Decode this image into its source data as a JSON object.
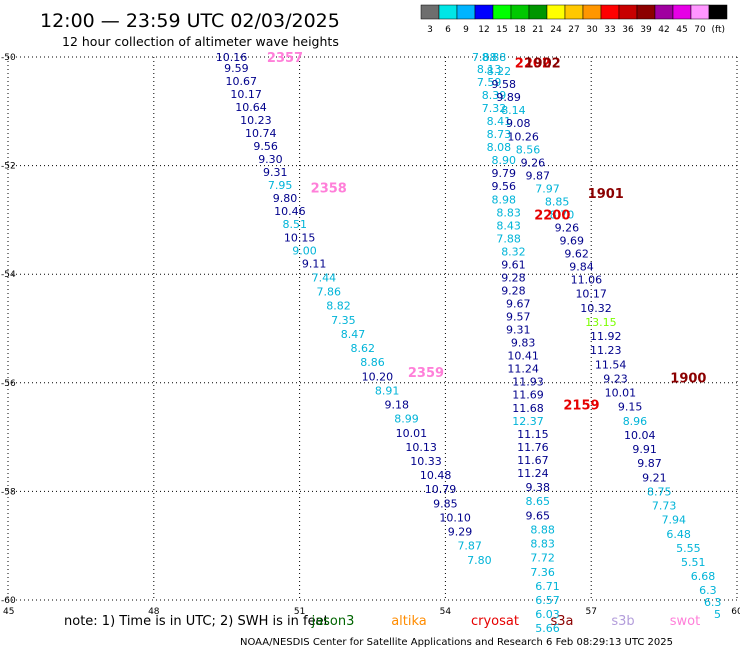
{
  "header": {
    "title": "12:00 — 23:59 UTC 02/03/2025",
    "subtitle": "12 hour collection of altimeter wave heights"
  },
  "colorbar": {
    "unit": "(ft)",
    "bins": [
      {
        "label": "3",
        "color": "#6e6e6e"
      },
      {
        "label": "6",
        "color": "#00e6e6"
      },
      {
        "label": "9",
        "color": "#00b4ff"
      },
      {
        "label": "12",
        "color": "#0000ff"
      },
      {
        "label": "15",
        "color": "#00ff00"
      },
      {
        "label": "18",
        "color": "#00c800"
      },
      {
        "label": "21",
        "color": "#009600"
      },
      {
        "label": "24",
        "color": "#ffff00"
      },
      {
        "label": "27",
        "color": "#ffc800"
      },
      {
        "label": "30",
        "color": "#ff9600"
      },
      {
        "label": "33",
        "color": "#ff0000"
      },
      {
        "label": "36",
        "color": "#c80000"
      },
      {
        "label": "39",
        "color": "#8c0000"
      },
      {
        "label": "42",
        "color": "#a000a0"
      },
      {
        "label": "45",
        "color": "#e600e6"
      },
      {
        "label": "70",
        "color": "#ff96ff"
      },
      {
        "label": "",
        "color": "#000000"
      }
    ]
  },
  "colors": {
    "navy": "#00008b",
    "lightblue": "#00b4d8",
    "pink": "#ff7fd9",
    "darkred": "#8b0000",
    "red": "#e60000",
    "lightgreen": "#7cff00",
    "grid": "#000000"
  },
  "footer": {
    "note": "note:  1) Time is in UTC;  2) SWH is in feet",
    "credit": "NOAA/NESDIS Center for Satellite Applications and Research     6 Feb 08:29:13 UTC 2025",
    "missions": [
      {
        "label": "jason3",
        "color": "#006400"
      },
      {
        "label": "altika",
        "color": "#ff8c00"
      },
      {
        "label": "cryosat",
        "color": "#e60000"
      },
      {
        "label": "s3a",
        "color": "#8b0000"
      },
      {
        "label": "s3b",
        "color": "#b39ddb"
      },
      {
        "label": "swot",
        "color": "#ff7fd9"
      }
    ]
  },
  "chart_data": {
    "type": "scatter",
    "xlim": [
      45,
      60
    ],
    "ylim": [
      -60,
      -50
    ],
    "xticks": [
      45,
      48,
      51,
      54,
      57,
      60
    ],
    "xtick_labels": [
      "45",
      "48",
      "51",
      "54",
      "57",
      "60"
    ],
    "yticks": [
      -50,
      -52,
      -54,
      -56,
      -58,
      -60
    ],
    "ytick_labels": [
      "-50",
      "-52",
      "-54",
      "-56",
      "-58",
      "-60"
    ],
    "grid": true,
    "time_labels": [
      {
        "text": "2357",
        "lon": 50.7,
        "lat": -50.0,
        "color": "pink"
      },
      {
        "text": "2358",
        "lon": 51.6,
        "lat": -52.4,
        "color": "pink"
      },
      {
        "text": "2359",
        "lon": 53.6,
        "lat": -55.8,
        "color": "pink"
      },
      {
        "text": "2202",
        "lon": 55.8,
        "lat": -50.1,
        "color": "red"
      },
      {
        "text": "1902",
        "lon": 56.0,
        "lat": -50.1,
        "color": "darkred"
      },
      {
        "text": "2200",
        "lon": 56.2,
        "lat": -52.9,
        "color": "red"
      },
      {
        "text": "1901",
        "lon": 57.3,
        "lat": -52.5,
        "color": "darkred"
      },
      {
        "text": "2159",
        "lon": 56.8,
        "lat": -56.4,
        "color": "red"
      },
      {
        "text": "1900",
        "lon": 59.0,
        "lat": -55.9,
        "color": "darkred"
      }
    ],
    "series": [
      {
        "points": [
          {
            "lon": 49.6,
            "lat": -50.0,
            "v": "10.16",
            "c": "navy"
          },
          {
            "lon": 49.7,
            "lat": -50.2,
            "v": "9.59",
            "c": "navy"
          },
          {
            "lon": 49.8,
            "lat": -50.44,
            "v": "10.67",
            "c": "navy"
          },
          {
            "lon": 49.9,
            "lat": -50.68,
            "v": "10.17",
            "c": "navy"
          },
          {
            "lon": 50.0,
            "lat": -50.92,
            "v": "10.64",
            "c": "navy"
          },
          {
            "lon": 50.1,
            "lat": -51.16,
            "v": "10.23",
            "c": "navy"
          },
          {
            "lon": 50.2,
            "lat": -51.4,
            "v": "10.74",
            "c": "navy"
          },
          {
            "lon": 50.3,
            "lat": -51.64,
            "v": "9.56",
            "c": "navy"
          },
          {
            "lon": 50.4,
            "lat": -51.88,
            "v": "9.30",
            "c": "navy"
          },
          {
            "lon": 50.5,
            "lat": -52.12,
            "v": "9.31",
            "c": "navy"
          },
          {
            "lon": 50.6,
            "lat": -52.36,
            "v": "7.95",
            "c": "lightblue"
          },
          {
            "lon": 50.7,
            "lat": -52.6,
            "v": "9.80",
            "c": "navy"
          },
          {
            "lon": 50.8,
            "lat": -52.84,
            "v": "10.46",
            "c": "navy"
          },
          {
            "lon": 50.9,
            "lat": -53.08,
            "v": "8.51",
            "c": "lightblue"
          },
          {
            "lon": 51.0,
            "lat": -53.32,
            "v": "10.15",
            "c": "navy"
          },
          {
            "lon": 51.1,
            "lat": -53.56,
            "v": "9.00",
            "c": "lightblue"
          },
          {
            "lon": 51.3,
            "lat": -53.8,
            "v": "9.11",
            "c": "navy"
          },
          {
            "lon": 51.5,
            "lat": -54.06,
            "v": "7.44",
            "c": "lightblue"
          },
          {
            "lon": 51.6,
            "lat": -54.32,
            "v": "7.86",
            "c": "lightblue"
          },
          {
            "lon": 51.8,
            "lat": -54.58,
            "v": "8.82",
            "c": "lightblue"
          },
          {
            "lon": 51.9,
            "lat": -54.84,
            "v": "7.35",
            "c": "lightblue"
          },
          {
            "lon": 52.1,
            "lat": -55.1,
            "v": "8.47",
            "c": "lightblue"
          },
          {
            "lon": 52.3,
            "lat": -55.36,
            "v": "8.62",
            "c": "lightblue"
          },
          {
            "lon": 52.5,
            "lat": -55.62,
            "v": "8.86",
            "c": "lightblue"
          },
          {
            "lon": 52.6,
            "lat": -55.88,
            "v": "10.20",
            "c": "navy"
          },
          {
            "lon": 52.8,
            "lat": -56.14,
            "v": "8.91",
            "c": "lightblue"
          },
          {
            "lon": 53.0,
            "lat": -56.4,
            "v": "9.18",
            "c": "navy"
          },
          {
            "lon": 53.2,
            "lat": -56.66,
            "v": "8.99",
            "c": "lightblue"
          },
          {
            "lon": 53.3,
            "lat": -56.92,
            "v": "10.01",
            "c": "navy"
          },
          {
            "lon": 53.5,
            "lat": -57.18,
            "v": "10.13",
            "c": "navy"
          },
          {
            "lon": 53.6,
            "lat": -57.44,
            "v": "10.33",
            "c": "navy"
          },
          {
            "lon": 53.8,
            "lat": -57.7,
            "v": "10.48",
            "c": "navy"
          },
          {
            "lon": 53.9,
            "lat": -57.96,
            "v": "10.79",
            "c": "navy"
          },
          {
            "lon": 54.0,
            "lat": -58.22,
            "v": "9.85",
            "c": "navy"
          },
          {
            "lon": 54.2,
            "lat": -58.48,
            "v": "10.10",
            "c": "navy"
          },
          {
            "lon": 54.3,
            "lat": -58.74,
            "v": "9.29",
            "c": "navy"
          },
          {
            "lon": 54.5,
            "lat": -59.0,
            "v": "7.87",
            "c": "lightblue"
          },
          {
            "lon": 54.7,
            "lat": -59.26,
            "v": "7.80",
            "c": "lightblue"
          }
        ]
      },
      {
        "points": [
          {
            "lon": 54.8,
            "lat": -50.0,
            "v": "7.88",
            "c": "lightblue"
          },
          {
            "lon": 54.9,
            "lat": -50.22,
            "v": "8.13",
            "c": "lightblue"
          },
          {
            "lon": 54.9,
            "lat": -50.46,
            "v": "7.59",
            "c": "lightblue"
          },
          {
            "lon": 55.0,
            "lat": -50.7,
            "v": "8.39",
            "c": "lightblue"
          },
          {
            "lon": 55.0,
            "lat": -50.94,
            "v": "7.32",
            "c": "lightblue"
          },
          {
            "lon": 55.1,
            "lat": -51.18,
            "v": "8.41",
            "c": "lightblue"
          },
          {
            "lon": 55.1,
            "lat": -51.42,
            "v": "8.73",
            "c": "lightblue"
          },
          {
            "lon": 55.1,
            "lat": -51.66,
            "v": "8.08",
            "c": "lightblue"
          },
          {
            "lon": 55.2,
            "lat": -51.9,
            "v": "8.90",
            "c": "lightblue"
          },
          {
            "lon": 55.2,
            "lat": -52.14,
            "v": "9.79",
            "c": "navy"
          },
          {
            "lon": 55.2,
            "lat": -52.38,
            "v": "9.56",
            "c": "navy"
          },
          {
            "lon": 55.2,
            "lat": -52.62,
            "v": "8.98",
            "c": "lightblue"
          },
          {
            "lon": 55.3,
            "lat": -52.86,
            "v": "8.83",
            "c": "lightblue"
          },
          {
            "lon": 55.3,
            "lat": -53.1,
            "v": "8.43",
            "c": "lightblue"
          },
          {
            "lon": 55.3,
            "lat": -53.34,
            "v": "7.88",
            "c": "lightblue"
          },
          {
            "lon": 55.4,
            "lat": -53.58,
            "v": "8.32",
            "c": "lightblue"
          },
          {
            "lon": 55.4,
            "lat": -53.82,
            "v": "9.61",
            "c": "navy"
          },
          {
            "lon": 55.4,
            "lat": -54.06,
            "v": "9.28",
            "c": "navy"
          },
          {
            "lon": 55.4,
            "lat": -54.3,
            "v": "9.28",
            "c": "navy"
          },
          {
            "lon": 55.5,
            "lat": -54.54,
            "v": "9.67",
            "c": "navy"
          },
          {
            "lon": 55.5,
            "lat": -54.78,
            "v": "9.57",
            "c": "navy"
          },
          {
            "lon": 55.5,
            "lat": -55.02,
            "v": "9.31",
            "c": "navy"
          },
          {
            "lon": 55.6,
            "lat": -55.26,
            "v": "9.83",
            "c": "navy"
          },
          {
            "lon": 55.6,
            "lat": -55.5,
            "v": "10.41",
            "c": "navy"
          },
          {
            "lon": 55.6,
            "lat": -55.74,
            "v": "11.24",
            "c": "navy"
          },
          {
            "lon": 55.7,
            "lat": -55.98,
            "v": "11.93",
            "c": "navy"
          },
          {
            "lon": 55.7,
            "lat": -56.22,
            "v": "11.69",
            "c": "navy"
          },
          {
            "lon": 55.7,
            "lat": -56.46,
            "v": "11.68",
            "c": "navy"
          },
          {
            "lon": 55.7,
            "lat": -56.7,
            "v": "12.37",
            "c": "lightblue"
          },
          {
            "lon": 55.8,
            "lat": -56.94,
            "v": "11.15",
            "c": "navy"
          },
          {
            "lon": 55.8,
            "lat": -57.18,
            "v": "11.76",
            "c": "navy"
          },
          {
            "lon": 55.8,
            "lat": -57.42,
            "v": "11.67",
            "c": "navy"
          },
          {
            "lon": 55.8,
            "lat": -57.66,
            "v": "11.24",
            "c": "navy"
          },
          {
            "lon": 55.9,
            "lat": -57.92,
            "v": "9.38",
            "c": "navy"
          },
          {
            "lon": 55.9,
            "lat": -58.18,
            "v": "8.65",
            "c": "lightblue"
          },
          {
            "lon": 55.9,
            "lat": -58.44,
            "v": "9.65",
            "c": "navy"
          },
          {
            "lon": 56.0,
            "lat": -58.7,
            "v": "8.88",
            "c": "lightblue"
          },
          {
            "lon": 56.0,
            "lat": -58.96,
            "v": "8.83",
            "c": "lightblue"
          },
          {
            "lon": 56.0,
            "lat": -59.22,
            "v": "7.72",
            "c": "lightblue"
          },
          {
            "lon": 56.0,
            "lat": -59.48,
            "v": "7.36",
            "c": "lightblue"
          },
          {
            "lon": 56.1,
            "lat": -59.74,
            "v": "6.71",
            "c": "lightblue"
          },
          {
            "lon": 56.1,
            "lat": -60.0,
            "v": "6.57",
            "c": "lightblue"
          },
          {
            "lon": 56.1,
            "lat": -60.26,
            "v": "6.03",
            "c": "lightblue"
          },
          {
            "lon": 56.1,
            "lat": -60.52,
            "v": "5.66",
            "c": "lightblue"
          }
        ]
      },
      {
        "points": [
          {
            "lon": 55.0,
            "lat": -50.0,
            "v": "8.88",
            "c": "lightblue"
          },
          {
            "lon": 55.1,
            "lat": -50.26,
            "v": "8.22",
            "c": "lightblue"
          },
          {
            "lon": 55.2,
            "lat": -50.5,
            "v": "9.58",
            "c": "navy"
          },
          {
            "lon": 55.3,
            "lat": -50.74,
            "v": "9.89",
            "c": "navy"
          },
          {
            "lon": 55.4,
            "lat": -50.98,
            "v": "8.14",
            "c": "lightblue"
          },
          {
            "lon": 55.5,
            "lat": -51.22,
            "v": "9.08",
            "c": "navy"
          },
          {
            "lon": 55.6,
            "lat": -51.46,
            "v": "10.26",
            "c": "navy"
          },
          {
            "lon": 55.7,
            "lat": -51.7,
            "v": "8.56",
            "c": "lightblue"
          },
          {
            "lon": 55.8,
            "lat": -51.94,
            "v": "9.26",
            "c": "navy"
          },
          {
            "lon": 55.9,
            "lat": -52.18,
            "v": "9.87",
            "c": "navy"
          },
          {
            "lon": 56.1,
            "lat": -52.42,
            "v": "7.97",
            "c": "lightblue"
          },
          {
            "lon": 56.3,
            "lat": -52.66,
            "v": "8.85",
            "c": "lightblue"
          },
          {
            "lon": 56.4,
            "lat": -52.9,
            "v": "8.70",
            "c": "lightblue"
          },
          {
            "lon": 56.5,
            "lat": -53.14,
            "v": "9.26",
            "c": "navy"
          },
          {
            "lon": 56.6,
            "lat": -53.38,
            "v": "9.69",
            "c": "navy"
          },
          {
            "lon": 56.7,
            "lat": -53.62,
            "v": "9.62",
            "c": "navy"
          },
          {
            "lon": 56.8,
            "lat": -53.86,
            "v": "9.84",
            "c": "navy"
          },
          {
            "lon": 56.9,
            "lat": -54.1,
            "v": "11.06",
            "c": "navy"
          },
          {
            "lon": 57.0,
            "lat": -54.36,
            "v": "10.17",
            "c": "navy"
          },
          {
            "lon": 57.1,
            "lat": -54.62,
            "v": "10.32",
            "c": "navy"
          },
          {
            "lon": 57.2,
            "lat": -54.88,
            "v": "13.15",
            "c": "lightgreen"
          },
          {
            "lon": 57.3,
            "lat": -55.14,
            "v": "11.92",
            "c": "navy"
          },
          {
            "lon": 57.3,
            "lat": -55.4,
            "v": "11.23",
            "c": "navy"
          },
          {
            "lon": 57.4,
            "lat": -55.66,
            "v": "11.54",
            "c": "navy"
          },
          {
            "lon": 57.5,
            "lat": -55.92,
            "v": "9.23",
            "c": "navy"
          },
          {
            "lon": 57.6,
            "lat": -56.18,
            "v": "10.01",
            "c": "navy"
          },
          {
            "lon": 57.8,
            "lat": -56.44,
            "v": "9.15",
            "c": "navy"
          },
          {
            "lon": 57.9,
            "lat": -56.7,
            "v": "8.96",
            "c": "lightblue"
          },
          {
            "lon": 58.0,
            "lat": -56.96,
            "v": "10.04",
            "c": "navy"
          },
          {
            "lon": 58.1,
            "lat": -57.22,
            "v": "9.91",
            "c": "navy"
          },
          {
            "lon": 58.2,
            "lat": -57.48,
            "v": "9.87",
            "c": "navy"
          },
          {
            "lon": 58.3,
            "lat": -57.74,
            "v": "9.21",
            "c": "navy"
          },
          {
            "lon": 58.4,
            "lat": -58.0,
            "v": "8.75",
            "c": "lightblue"
          },
          {
            "lon": 58.5,
            "lat": -58.26,
            "v": "7.73",
            "c": "lightblue"
          },
          {
            "lon": 58.7,
            "lat": -58.52,
            "v": "7.94",
            "c": "lightblue"
          },
          {
            "lon": 58.8,
            "lat": -58.78,
            "v": "6.48",
            "c": "lightblue"
          },
          {
            "lon": 59.0,
            "lat": -59.04,
            "v": "5.55",
            "c": "lightblue"
          },
          {
            "lon": 59.1,
            "lat": -59.3,
            "v": "5.51",
            "c": "lightblue"
          },
          {
            "lon": 59.3,
            "lat": -59.56,
            "v": "6.68",
            "c": "lightblue"
          },
          {
            "lon": 59.4,
            "lat": -59.82,
            "v": "6.3",
            "c": "lightblue"
          },
          {
            "lon": 59.5,
            "lat": -60.04,
            "v": "6.3",
            "c": "lightblue"
          },
          {
            "lon": 59.6,
            "lat": -60.26,
            "v": "5",
            "c": "lightblue"
          }
        ]
      }
    ]
  }
}
